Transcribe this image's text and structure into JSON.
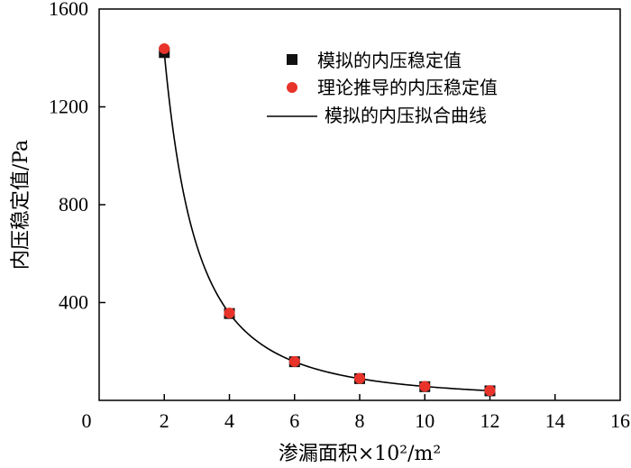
{
  "chart_data": {
    "type": "scatter",
    "xlabel": "渗漏面积×10²/m²",
    "ylabel": "内压稳定值/Pa",
    "xlim": [
      0,
      16
    ],
    "ylim": [
      0,
      1600
    ],
    "x_ticks": [
      "0",
      "2",
      "4",
      "6",
      "8",
      "10",
      "12",
      "14",
      "16"
    ],
    "y_ticks": [
      "400",
      "800",
      "1200",
      "1600"
    ],
    "legend_position": "top-right",
    "series": [
      {
        "name": "模拟的内压稳定值",
        "kind": "square-marker",
        "color": "#111111",
        "x": [
          2,
          4,
          6,
          8,
          10,
          12
        ],
        "y": [
          1422,
          355,
          158,
          89,
          56,
          39
        ]
      },
      {
        "name": "理论推导的内压稳定值",
        "kind": "circle-marker",
        "color": "#e8332a",
        "x": [
          2,
          4,
          6,
          8,
          10,
          12
        ],
        "y": [
          1438,
          357,
          159,
          90,
          57,
          40
        ]
      },
      {
        "name": "模拟的内压拟合曲线",
        "kind": "line",
        "color": "#000000",
        "model": "y = 5688 / x^2",
        "x_range": [
          2,
          12
        ]
      }
    ]
  }
}
